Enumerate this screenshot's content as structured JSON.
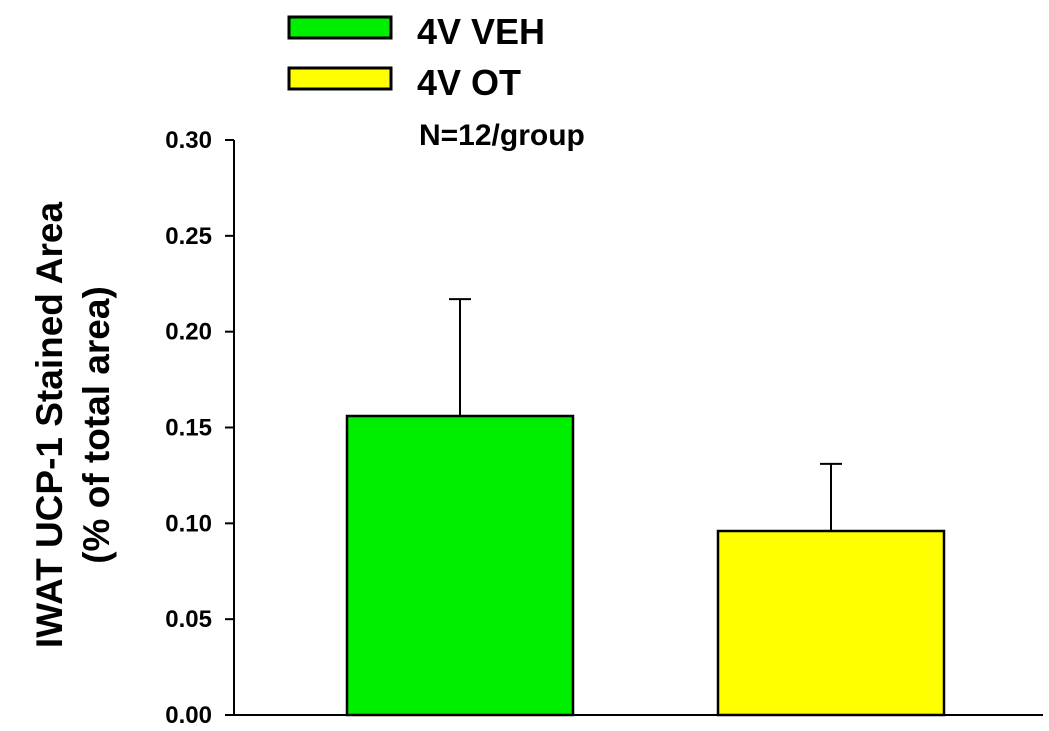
{
  "chart_data": {
    "type": "bar",
    "categories": [
      "4V VEH",
      "4V OT"
    ],
    "values": [
      0.156,
      0.096
    ],
    "errors": [
      0.061,
      0.035
    ],
    "colors": [
      "#00ee00",
      "#ffff00"
    ],
    "ylabel_line1": "IWAT UCP-1 Stained Area",
    "ylabel_line2": "(% of total area)",
    "ylim": [
      0,
      0.3
    ],
    "yticks": [
      "0.00",
      "0.05",
      "0.10",
      "0.15",
      "0.20",
      "0.25",
      "0.30"
    ],
    "legend": [
      {
        "label": "4V VEH",
        "color": "#00ee00"
      },
      {
        "label": "4V OT",
        "color": "#ffff00"
      }
    ],
    "legend_position": "top-center",
    "annotation": "N=12/group",
    "grid": false
  }
}
